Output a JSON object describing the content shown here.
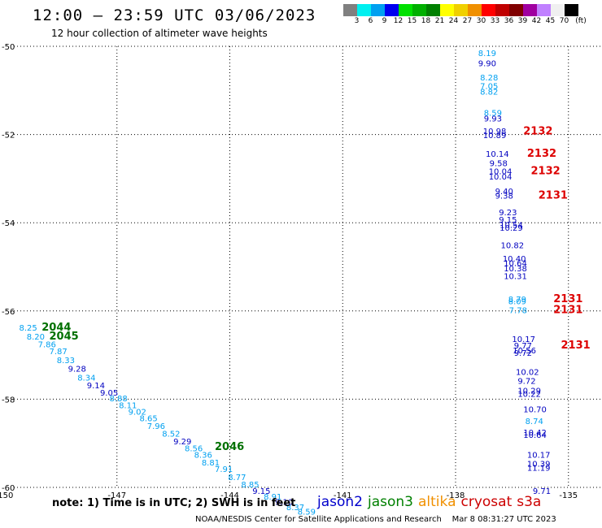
{
  "header": {
    "title": "12:00 – 23:59 UTC 03/06/2023",
    "subtitle": "12 hour collection of altimeter wave heights"
  },
  "color_legend": {
    "ticks": [
      "3",
      "6",
      "9",
      "12",
      "15",
      "18",
      "21",
      "24",
      "27",
      "30",
      "33",
      "36",
      "39",
      "42",
      "45",
      "70"
    ],
    "unit": "(ft)",
    "colors": [
      "#808080",
      "#00f0f0",
      "#00a0f0",
      "#0000f0",
      "#00e000",
      "#00b000",
      "#008000",
      "#ffff00",
      "#f0d000",
      "#f09000",
      "#ff0000",
      "#c00000",
      "#800000",
      "#a000a0",
      "#c080ff",
      "#f0f0f0",
      "#000000"
    ]
  },
  "footer": {
    "note": "note: 1) Time is in UTC; 2) SWH is in feet",
    "satellites": [
      {
        "name": "jason2",
        "color": "#0000cc"
      },
      {
        "name": "jason3",
        "color": "#008000"
      },
      {
        "name": "altika",
        "color": "#f09000"
      },
      {
        "name": "cryosat",
        "color": "#cc0000"
      },
      {
        "name": "s3a",
        "color": "#cc0000"
      }
    ],
    "credit": "NOAA/NESDIS Center for Satellite Applications and Research",
    "timestamp": "Mar  8 08:31:27 UTC 2023"
  },
  "chart_data": {
    "type": "scatter",
    "xlim": [
      -150,
      -134
    ],
    "ylim": [
      -60,
      -50
    ],
    "x_ticks": [
      "-150",
      "-147",
      "-144",
      "-141",
      "-138",
      "-135"
    ],
    "y_ticks": [
      "-50",
      "-52",
      "-54",
      "-56",
      "-58",
      "-60"
    ],
    "x_tick_values": [
      -150,
      -147,
      -144,
      -141,
      -138,
      -135
    ],
    "y_tick_values": [
      -50,
      -52,
      -54,
      -56,
      -58,
      -60
    ],
    "grid": true,
    "points": [
      {
        "lon": -137.4,
        "lat": -50.22,
        "label": "8.19",
        "color": "#00a0f0"
      },
      {
        "lon": -137.4,
        "lat": -50.45,
        "label": "9.90",
        "color": "#0000c0"
      },
      {
        "lon": -137.35,
        "lat": -50.77,
        "label": "8.28",
        "color": "#00a0f0"
      },
      {
        "lon": -137.35,
        "lat": -50.97,
        "label": "7.05",
        "color": "#00a0f0"
      },
      {
        "lon": -137.35,
        "lat": -51.1,
        "label": "8.82",
        "color": "#00a0f0"
      },
      {
        "lon": -137.25,
        "lat": -51.57,
        "label": "8.59",
        "color": "#00a0f0"
      },
      {
        "lon": -137.25,
        "lat": -51.7,
        "label": "9.93",
        "color": "#0000c0"
      },
      {
        "lon": -137.27,
        "lat": -51.99,
        "label": "10.98",
        "color": "#0000c0"
      },
      {
        "lon": -137.27,
        "lat": -52.08,
        "label": "10.89",
        "color": "#0000c0"
      },
      {
        "lon": -137.2,
        "lat": -52.5,
        "label": "10.14",
        "color": "#0000c0"
      },
      {
        "lon": -137.1,
        "lat": -52.72,
        "label": "9.58",
        "color": "#0000c0"
      },
      {
        "lon": -137.12,
        "lat": -52.9,
        "label": "10.04",
        "color": "#0000c0"
      },
      {
        "lon": -137.12,
        "lat": -53.02,
        "label": "10.04",
        "color": "#0000c0"
      },
      {
        "lon": -136.95,
        "lat": -53.35,
        "label": "9.40",
        "color": "#0000c0"
      },
      {
        "lon": -136.95,
        "lat": -53.45,
        "label": "9.38",
        "color": "#0000c0"
      },
      {
        "lon": -136.85,
        "lat": -53.83,
        "label": "9.23",
        "color": "#0000c0"
      },
      {
        "lon": -136.85,
        "lat": -54.0,
        "label": "9.15",
        "color": "#0000c0"
      },
      {
        "lon": -136.83,
        "lat": -54.12,
        "label": "10.54",
        "color": "#0000c0"
      },
      {
        "lon": -136.83,
        "lat": -54.18,
        "label": "10.29",
        "color": "#0000c0"
      },
      {
        "lon": -136.8,
        "lat": -54.58,
        "label": "10.82",
        "color": "#0000c0"
      },
      {
        "lon": -136.75,
        "lat": -54.88,
        "label": "10.40",
        "color": "#0000c0"
      },
      {
        "lon": -136.72,
        "lat": -54.98,
        "label": "10.64",
        "color": "#0000c0"
      },
      {
        "lon": -136.72,
        "lat": -55.1,
        "label": "10.38",
        "color": "#0000c0"
      },
      {
        "lon": -136.72,
        "lat": -55.28,
        "label": "10.31",
        "color": "#0000c0"
      },
      {
        "lon": -136.6,
        "lat": -55.8,
        "label": "8.79",
        "color": "#00a0f0"
      },
      {
        "lon": -136.6,
        "lat": -55.85,
        "label": "8.09",
        "color": "#00a0f0"
      },
      {
        "lon": -136.58,
        "lat": -56.05,
        "label": "7.78",
        "color": "#00a0f0"
      },
      {
        "lon": -136.5,
        "lat": -56.7,
        "label": "10.17",
        "color": "#0000c0"
      },
      {
        "lon": -136.45,
        "lat": -56.85,
        "label": "9.77",
        "color": "#0000c0"
      },
      {
        "lon": -136.48,
        "lat": -56.96,
        "label": "10.56",
        "color": "#0000c0"
      },
      {
        "lon": -136.45,
        "lat": -57.02,
        "label": "9.72",
        "color": "#0000c0"
      },
      {
        "lon": -136.4,
        "lat": -57.45,
        "label": "10.02",
        "color": "#0000c0"
      },
      {
        "lon": -136.35,
        "lat": -57.65,
        "label": "9.72",
        "color": "#0000c0"
      },
      {
        "lon": -136.35,
        "lat": -57.87,
        "label": "10.29",
        "color": "#0000c0"
      },
      {
        "lon": -136.35,
        "lat": -57.95,
        "label": "10.22",
        "color": "#0000c0"
      },
      {
        "lon": -136.2,
        "lat": -58.3,
        "label": "10.70",
        "color": "#0000c0"
      },
      {
        "lon": -136.15,
        "lat": -58.56,
        "label": "8.74",
        "color": "#00a0f0"
      },
      {
        "lon": -136.2,
        "lat": -58.82,
        "label": "10.42",
        "color": "#0000c0"
      },
      {
        "lon": -136.2,
        "lat": -58.88,
        "label": "10.64",
        "color": "#0000c0"
      },
      {
        "lon": -136.1,
        "lat": -59.33,
        "label": "10.17",
        "color": "#0000c0"
      },
      {
        "lon": -136.1,
        "lat": -59.53,
        "label": "10.39",
        "color": "#0000c0"
      },
      {
        "lon": -136.1,
        "lat": -59.62,
        "label": "11.19",
        "color": "#0000c0"
      },
      {
        "lon": -135.95,
        "lat": -60.15,
        "label": "9.71",
        "color": "#0000c0"
      },
      {
        "lon": -149.6,
        "lat": -56.45,
        "label": "8.25",
        "color": "#00a0f0"
      },
      {
        "lon": -149.4,
        "lat": -56.65,
        "label": "8.20",
        "color": "#00a0f0"
      },
      {
        "lon": -149.1,
        "lat": -56.82,
        "label": "7.86",
        "color": "#00a0f0"
      },
      {
        "lon": -148.8,
        "lat": -56.98,
        "label": "7.87",
        "color": "#00a0f0"
      },
      {
        "lon": -148.6,
        "lat": -57.18,
        "label": "8.33",
        "color": "#00a0f0"
      },
      {
        "lon": -148.3,
        "lat": -57.38,
        "label": "9.28",
        "color": "#0000c0"
      },
      {
        "lon": -148.05,
        "lat": -57.58,
        "label": "8.34",
        "color": "#00a0f0"
      },
      {
        "lon": -147.8,
        "lat": -57.75,
        "label": "9.14",
        "color": "#0000c0"
      },
      {
        "lon": -147.45,
        "lat": -57.92,
        "label": "9.05",
        "color": "#0000c0"
      },
      {
        "lon": -147.2,
        "lat": -58.05,
        "label": "8.88",
        "color": "#00a0f0"
      },
      {
        "lon": -146.95,
        "lat": -58.2,
        "label": "8.11",
        "color": "#00a0f0"
      },
      {
        "lon": -146.7,
        "lat": -58.35,
        "label": "9.02",
        "color": "#00a0f0"
      },
      {
        "lon": -146.4,
        "lat": -58.5,
        "label": "8.65",
        "color": "#00a0f0"
      },
      {
        "lon": -146.2,
        "lat": -58.67,
        "label": "7.96",
        "color": "#00a0f0"
      },
      {
        "lon": -145.8,
        "lat": -58.85,
        "label": "8.52",
        "color": "#00a0f0"
      },
      {
        "lon": -145.5,
        "lat": -59.02,
        "label": "9.29",
        "color": "#0000c0"
      },
      {
        "lon": -145.2,
        "lat": -59.18,
        "label": "8.56",
        "color": "#00a0f0"
      },
      {
        "lon": -144.95,
        "lat": -59.33,
        "label": "8.36",
        "color": "#00a0f0"
      },
      {
        "lon": -144.75,
        "lat": -59.5,
        "label": "8.81",
        "color": "#00a0f0"
      },
      {
        "lon": -144.4,
        "lat": -59.65,
        "label": "7.91",
        "color": "#00a0f0"
      },
      {
        "lon": -144.05,
        "lat": -59.83,
        "label": "8.77",
        "color": "#00a0f0"
      },
      {
        "lon": -143.7,
        "lat": -60.0,
        "label": "8.85",
        "color": "#00a0f0"
      },
      {
        "lon": -143.4,
        "lat": -60.15,
        "label": "9.15",
        "color": "#0000c0"
      },
      {
        "lon": -143.1,
        "lat": -60.28,
        "label": "8.91",
        "color": "#00a0f0"
      },
      {
        "lon": -142.8,
        "lat": -60.4,
        "label": "9.10",
        "color": "#0000c0"
      },
      {
        "lon": -142.5,
        "lat": -60.52,
        "label": "8.37",
        "color": "#00a0f0"
      },
      {
        "lon": -142.2,
        "lat": -60.62,
        "label": "8.59",
        "color": "#00a0f0"
      }
    ],
    "time_labels": [
      {
        "lon": -136.2,
        "lat": -52.0,
        "label": "2132",
        "color": "#dd0000"
      },
      {
        "lon": -136.1,
        "lat": -52.5,
        "label": "2132",
        "color": "#dd0000"
      },
      {
        "lon": -136.0,
        "lat": -52.9,
        "label": "2132",
        "color": "#dd0000"
      },
      {
        "lon": -135.8,
        "lat": -53.45,
        "label": "2131",
        "color": "#dd0000"
      },
      {
        "lon": -135.4,
        "lat": -55.8,
        "label": "2131",
        "color": "#dd0000"
      },
      {
        "lon": -135.4,
        "lat": -56.05,
        "label": "2131",
        "color": "#dd0000"
      },
      {
        "lon": -135.2,
        "lat": -56.85,
        "label": "2131",
        "color": "#dd0000"
      },
      {
        "lon": -149.0,
        "lat": -56.45,
        "label": "2044",
        "color": "#007000"
      },
      {
        "lon": -148.8,
        "lat": -56.65,
        "label": "2045",
        "color": "#007000"
      },
      {
        "lon": -144.4,
        "lat": -59.15,
        "label": "2046",
        "color": "#007000"
      }
    ]
  }
}
